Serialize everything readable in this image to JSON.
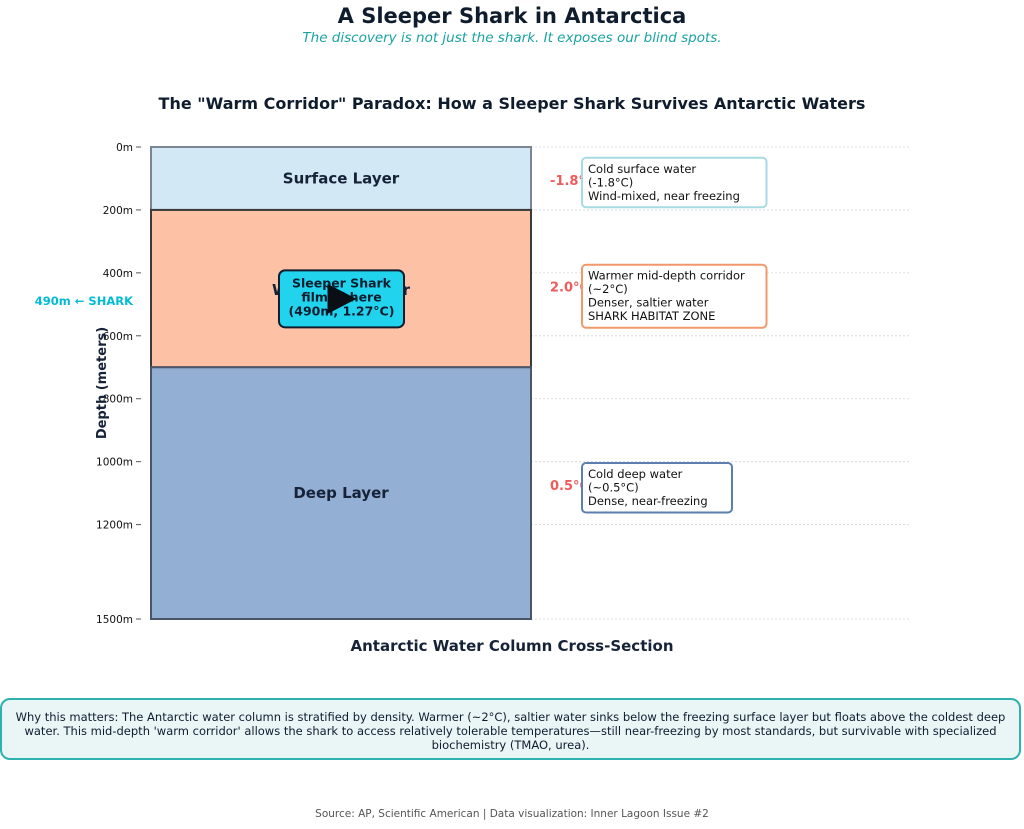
{
  "header": {
    "title": "A Sleeper Shark in Antarctica",
    "subtitle": "The discovery is not just the shark. It exposes our blind spots."
  },
  "chart_data": {
    "type": "bar",
    "title": "The \"Warm Corridor\" Paradox: How a Sleeper Shark Survives Antarctic Waters",
    "xlabel": "Antarctic Water Column Cross-Section",
    "ylabel": "Depth (meters)",
    "ylim": [
      0,
      1500
    ],
    "y_inverted": true,
    "grid": true,
    "yticks": [
      {
        "value": 0,
        "label": "0m"
      },
      {
        "value": 200,
        "label": "200m"
      },
      {
        "value": 400,
        "label": "400m"
      },
      {
        "value": 600,
        "label": "600m"
      },
      {
        "value": 800,
        "label": "800m"
      },
      {
        "value": 1000,
        "label": "1000m"
      },
      {
        "value": 1200,
        "label": "1200m"
      },
      {
        "value": 1500,
        "label": "1500m"
      }
    ],
    "layers": [
      {
        "name": "Surface Layer",
        "top": 0,
        "bottom": 200,
        "color": "#d2e9f5",
        "border": "#7a8694",
        "temp_label": "-1.8°C",
        "note": [
          "Cold surface water",
          "(-1.8°C)",
          "Wind-mixed, near freezing"
        ],
        "note_border": "#a7dbe3"
      },
      {
        "name": "Warm Mid-Layer",
        "top": 200,
        "bottom": 700,
        "color": "#fdc2a5",
        "border": "#3a3a3a",
        "temp_label": "2.0°C",
        "note": [
          "Warmer mid-depth corridor",
          "(~2°C)",
          "Denser, saltier water",
          "SHARK HABITAT ZONE"
        ],
        "note_border": "#f2996c"
      },
      {
        "name": "Deep Layer",
        "top": 700,
        "bottom": 1500,
        "color": "#93afd3",
        "border": "#4a5568",
        "temp_label": "0.5°C",
        "note": [
          "Cold deep water",
          "(~0.5°C)",
          "Dense, near-freezing"
        ],
        "note_border": "#5b7fae"
      }
    ],
    "shark": {
      "depth": 490,
      "temp": 1.27,
      "axis_label": "490m ← SHARK",
      "callout": [
        "Sleeper Shark",
        "filmed here",
        "(490m, 1.27°C)"
      ],
      "callout_color": "#22d3ee",
      "label_color": "#00bcd4"
    },
    "temp_color": "#ef5b5b"
  },
  "footer": {
    "note": "Why this matters: The Antarctic water column is stratified by density. Warmer (~2°C), saltier water sinks below the freezing surface layer but floats above the coldest deep water. This mid-depth 'warm corridor' allows the shark to access relatively tolerable temperatures—still near-freezing by most standards, but survivable with specialized biochemistry (TMAO, urea).",
    "source": "Source: AP, Scientific American | Data visualization: Inner Lagoon Issue #2"
  },
  "icons": {
    "video": "play-icon"
  }
}
